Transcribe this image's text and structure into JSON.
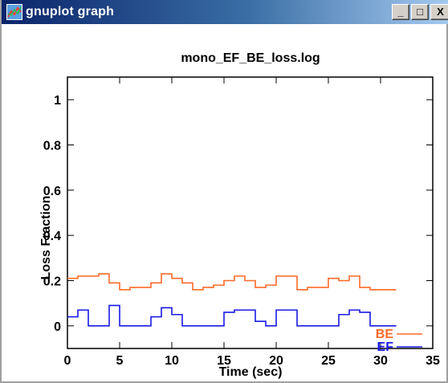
{
  "window": {
    "title": "gnuplot graph",
    "minimize_symbol": "_",
    "maximize_symbol": "□",
    "close_symbol": "X"
  },
  "chart_data": {
    "type": "line",
    "title": "mono_EF_BE_loss.log",
    "xlabel": "Time (sec)",
    "ylabel": "Loss Fraction",
    "xlim": [
      0,
      35
    ],
    "ylim": [
      -0.1,
      1.1
    ],
    "xticks": [
      0,
      5,
      10,
      15,
      20,
      25,
      30,
      35
    ],
    "yticks": [
      0,
      0.2,
      0.4,
      0.6,
      0.8,
      1
    ],
    "xtick_labels": [
      "0",
      "5",
      "10",
      "15",
      "20",
      "25",
      "30",
      "35"
    ],
    "ytick_labels": [
      "0",
      "0.2",
      "0.4",
      "0.6",
      "0.8",
      "1"
    ],
    "grid": false,
    "legend": "bottom-right",
    "series": [
      {
        "name": "BE",
        "color": "#ff6a2a",
        "step": true,
        "x": [
          0,
          1,
          2,
          3,
          4,
          5,
          6,
          7,
          8,
          9,
          10,
          11,
          12,
          13,
          14,
          15,
          16,
          17,
          18,
          19,
          20,
          21,
          22,
          23,
          24,
          25,
          26,
          27,
          28,
          29,
          30,
          31
        ],
        "y": [
          0.21,
          0.22,
          0.22,
          0.23,
          0.19,
          0.16,
          0.17,
          0.17,
          0.19,
          0.23,
          0.21,
          0.19,
          0.16,
          0.17,
          0.18,
          0.2,
          0.22,
          0.2,
          0.17,
          0.18,
          0.22,
          0.22,
          0.16,
          0.17,
          0.17,
          0.21,
          0.2,
          0.22,
          0.17,
          0.16,
          0.16,
          0.16
        ]
      },
      {
        "name": "EF",
        "color": "#1a1ae6",
        "step": true,
        "x": [
          0,
          1,
          2,
          3,
          4,
          5,
          6,
          7,
          8,
          9,
          10,
          11,
          12,
          13,
          14,
          15,
          16,
          17,
          18,
          19,
          20,
          21,
          22,
          23,
          24,
          25,
          26,
          27,
          28,
          29,
          30,
          31
        ],
        "y": [
          0.04,
          0.07,
          0.0,
          0.0,
          0.09,
          0.0,
          0.0,
          0.0,
          0.04,
          0.08,
          0.05,
          0.0,
          0.0,
          0.0,
          0.0,
          0.06,
          0.07,
          0.07,
          0.02,
          0.0,
          0.07,
          0.07,
          0.0,
          0.0,
          0.0,
          0.0,
          0.05,
          0.07,
          0.06,
          0.0,
          0.0,
          0.0
        ]
      }
    ]
  }
}
